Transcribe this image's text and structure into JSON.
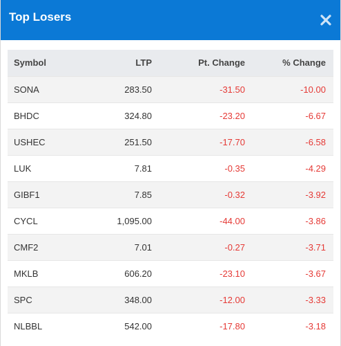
{
  "header": {
    "title": "Top Losers",
    "close_icon": "close-icon",
    "background_color": "#0b79d6"
  },
  "table": {
    "columns": [
      "Symbol",
      "LTP",
      "Pt. Change",
      "% Change"
    ],
    "rows": [
      {
        "symbol": "SONA",
        "ltp": "283.50",
        "pt_change": "-31.50",
        "pct_change": "-10.00"
      },
      {
        "symbol": "BHDC",
        "ltp": "324.80",
        "pt_change": "-23.20",
        "pct_change": "-6.67"
      },
      {
        "symbol": "USHEC",
        "ltp": "251.50",
        "pt_change": "-17.70",
        "pct_change": "-6.58"
      },
      {
        "symbol": "LUK",
        "ltp": "7.81",
        "pt_change": "-0.35",
        "pct_change": "-4.29"
      },
      {
        "symbol": "GIBF1",
        "ltp": "7.85",
        "pt_change": "-0.32",
        "pct_change": "-3.92"
      },
      {
        "symbol": "CYCL",
        "ltp": "1,095.00",
        "pt_change": "-44.00",
        "pct_change": "-3.86"
      },
      {
        "symbol": "CMF2",
        "ltp": "7.01",
        "pt_change": "-0.27",
        "pct_change": "-3.71"
      },
      {
        "symbol": "MKLB",
        "ltp": "606.20",
        "pt_change": "-23.10",
        "pct_change": "-3.67"
      },
      {
        "symbol": "SPC",
        "ltp": "348.00",
        "pt_change": "-12.00",
        "pct_change": "-3.33"
      },
      {
        "symbol": "NLBBL",
        "ltp": "542.00",
        "pt_change": "-17.80",
        "pct_change": "-3.18"
      }
    ],
    "negative_color": "#e53935"
  }
}
